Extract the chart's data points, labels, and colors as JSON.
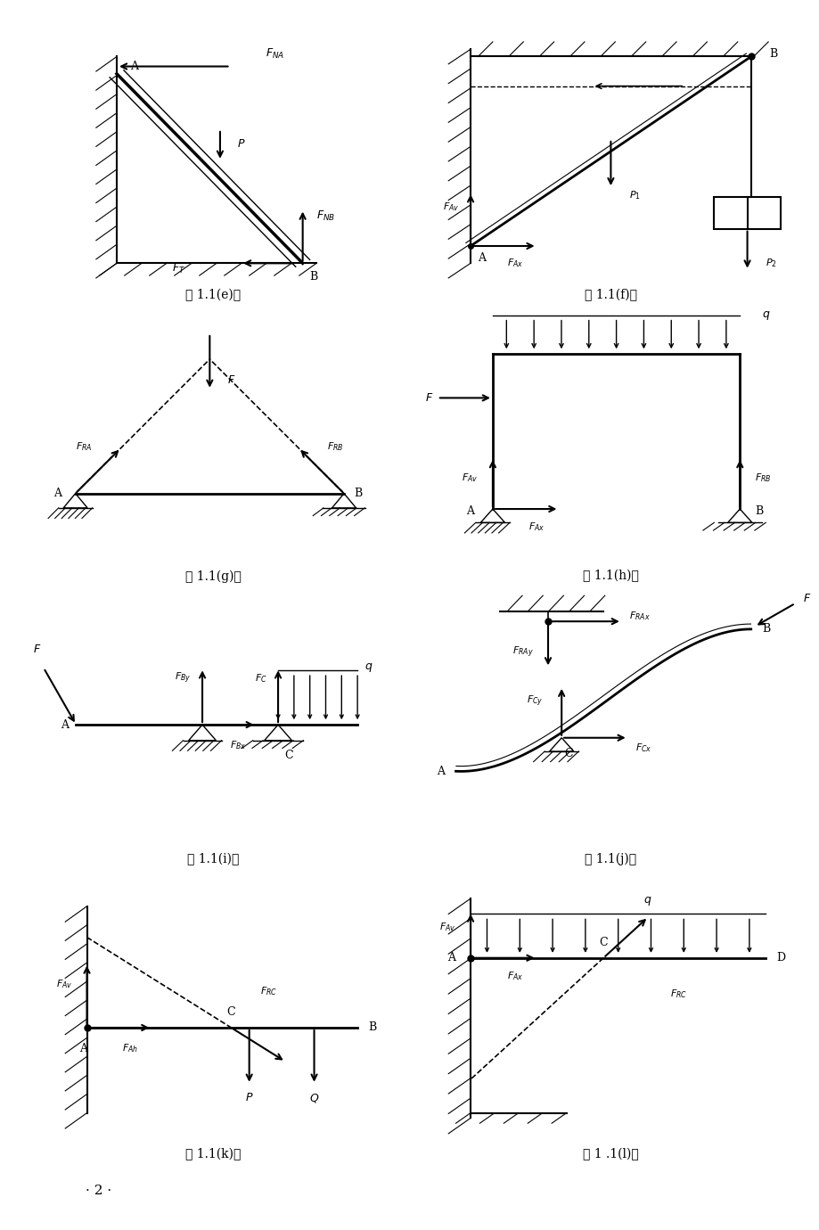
{
  "bg_color": "#ffffff",
  "fig_width": 9.2,
  "fig_height": 13.8,
  "labels": {
    "e": "题 1.1(e)图",
    "f": "题 1.1(f)图",
    "g": "题 1.1(g)图",
    "h": "题 1.1(h)图",
    "i": "题 1.1(i)图",
    "j": "题 1.1(j)图",
    "k": "题 1.1(k)图",
    "l": "题 1 .1(l)图"
  },
  "page_num": "· 2 ·"
}
